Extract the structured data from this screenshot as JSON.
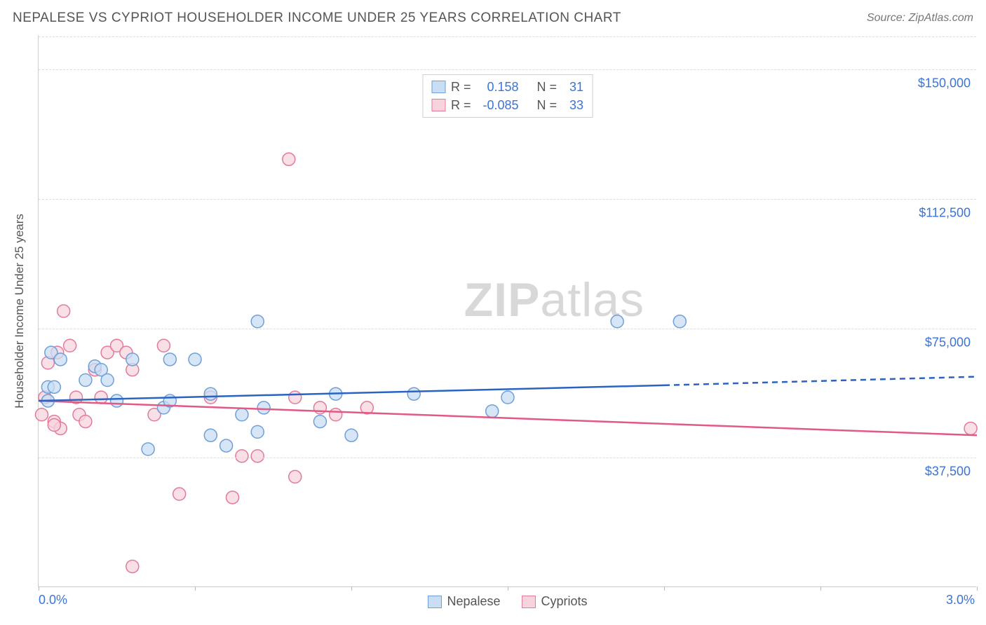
{
  "header": {
    "title": "NEPALESE VS CYPRIOT HOUSEHOLDER INCOME UNDER 25 YEARS CORRELATION CHART",
    "source": "Source: ZipAtlas.com"
  },
  "watermark": {
    "bold": "ZIP",
    "rest": "atlas"
  },
  "chart": {
    "type": "scatter",
    "xlim": [
      0.0,
      3.0
    ],
    "ylim": [
      0,
      160000
    ],
    "x_ticks": [
      0.0,
      0.5,
      1.0,
      1.5,
      2.0,
      2.5,
      3.0
    ],
    "x_tick_labels": {
      "0": "0.0%",
      "3": "3.0%"
    },
    "y_gridlines": [
      37500,
      75000,
      112500,
      150000
    ],
    "y_tick_labels": [
      "$37,500",
      "$75,000",
      "$112,500",
      "$150,000"
    ],
    "y_axis_label": "Householder Income Under 25 years",
    "background_color": "#ffffff",
    "grid_color": "#dddddd",
    "axis_color": "#cccccc",
    "marker_radius": 9,
    "marker_stroke_width": 1.5,
    "trend_line_width": 2.5,
    "series": {
      "nepalese": {
        "label": "Nepalese",
        "fill": "#c9ddf3",
        "stroke": "#6f9fd9",
        "line_color": "#2b63c4",
        "r_label": "R =",
        "r_value": "0.158",
        "n_label": "N =",
        "n_value": "31",
        "points": [
          [
            0.03,
            54000
          ],
          [
            0.03,
            58000
          ],
          [
            0.04,
            68000
          ],
          [
            0.05,
            58000
          ],
          [
            0.07,
            66000
          ],
          [
            0.15,
            60000
          ],
          [
            0.18,
            64000
          ],
          [
            0.2,
            63000
          ],
          [
            0.22,
            60000
          ],
          [
            0.25,
            54000
          ],
          [
            0.3,
            66000
          ],
          [
            0.35,
            40000
          ],
          [
            0.4,
            52000
          ],
          [
            0.42,
            66000
          ],
          [
            0.42,
            54000
          ],
          [
            0.5,
            66000
          ],
          [
            0.55,
            56000
          ],
          [
            0.55,
            44000
          ],
          [
            0.6,
            41000
          ],
          [
            0.65,
            50000
          ],
          [
            0.7,
            45000
          ],
          [
            0.7,
            77000
          ],
          [
            0.72,
            52000
          ],
          [
            0.9,
            48000
          ],
          [
            0.95,
            56000
          ],
          [
            1.0,
            44000
          ],
          [
            1.2,
            56000
          ],
          [
            1.5,
            55000
          ],
          [
            1.85,
            77000
          ],
          [
            2.05,
            77000
          ],
          [
            1.45,
            51000
          ]
        ],
        "trend": {
          "x1": 0.0,
          "y1": 54000,
          "x2_solid": 2.0,
          "y2_solid": 58500,
          "x2_dash": 3.0,
          "y2_dash": 61000
        }
      },
      "cypriots": {
        "label": "Cypriots",
        "fill": "#f7d4dd",
        "stroke": "#e37a9a",
        "line_color": "#e15a84",
        "r_label": "R =",
        "r_value": "-0.085",
        "n_label": "N =",
        "n_value": "33",
        "points": [
          [
            0.01,
            50000
          ],
          [
            0.02,
            55000
          ],
          [
            0.03,
            65000
          ],
          [
            0.05,
            48000
          ],
          [
            0.06,
            68000
          ],
          [
            0.07,
            46000
          ],
          [
            0.08,
            80000
          ],
          [
            0.1,
            70000
          ],
          [
            0.12,
            55000
          ],
          [
            0.13,
            50000
          ],
          [
            0.15,
            48000
          ],
          [
            0.18,
            63000
          ],
          [
            0.2,
            55000
          ],
          [
            0.22,
            68000
          ],
          [
            0.25,
            70000
          ],
          [
            0.28,
            68000
          ],
          [
            0.3,
            63000
          ],
          [
            0.3,
            6000
          ],
          [
            0.37,
            50000
          ],
          [
            0.4,
            70000
          ],
          [
            0.45,
            27000
          ],
          [
            0.55,
            55000
          ],
          [
            0.62,
            26000
          ],
          [
            0.65,
            38000
          ],
          [
            0.7,
            38000
          ],
          [
            0.8,
            124000
          ],
          [
            0.82,
            55000
          ],
          [
            0.82,
            32000
          ],
          [
            0.9,
            52000
          ],
          [
            0.95,
            50000
          ],
          [
            1.05,
            52000
          ],
          [
            2.98,
            46000
          ],
          [
            0.05,
            47000
          ]
        ],
        "trend": {
          "x1": 0.0,
          "y1": 54000,
          "x2_solid": 3.0,
          "y2_solid": 44000
        }
      }
    }
  },
  "legend_bottom": {
    "items": [
      {
        "key": "nepalese",
        "label": "Nepalese"
      },
      {
        "key": "cypriots",
        "label": "Cypriots"
      }
    ]
  }
}
